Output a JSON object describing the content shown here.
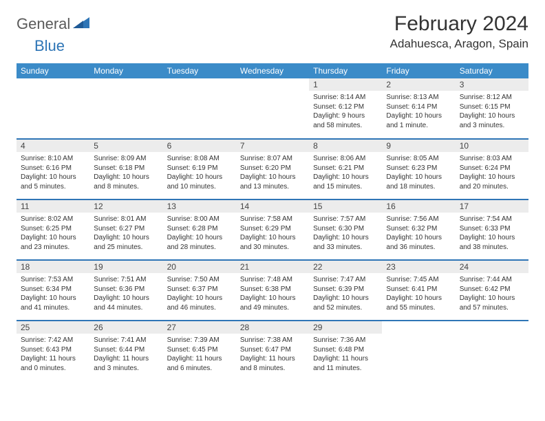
{
  "brand": {
    "part1": "General",
    "part2": "Blue"
  },
  "title": "February 2024",
  "location": "Adahuesca, Aragon, Spain",
  "header_bg": "#3b8bc8",
  "rule_color": "#2e75b6",
  "daynum_bg": "#ececec",
  "text_color": "#333333",
  "font_size_title": 30,
  "font_size_location": 17,
  "font_size_header": 12,
  "font_size_daynum": 12,
  "font_size_body": 10,
  "weekdays": [
    "Sunday",
    "Monday",
    "Tuesday",
    "Wednesday",
    "Thursday",
    "Friday",
    "Saturday"
  ],
  "weeks": [
    [
      null,
      null,
      null,
      null,
      {
        "n": "1",
        "sr": "8:14 AM",
        "ss": "6:12 PM",
        "dl": "9 hours and 58 minutes."
      },
      {
        "n": "2",
        "sr": "8:13 AM",
        "ss": "6:14 PM",
        "dl": "10 hours and 1 minute."
      },
      {
        "n": "3",
        "sr": "8:12 AM",
        "ss": "6:15 PM",
        "dl": "10 hours and 3 minutes."
      }
    ],
    [
      {
        "n": "4",
        "sr": "8:10 AM",
        "ss": "6:16 PM",
        "dl": "10 hours and 5 minutes."
      },
      {
        "n": "5",
        "sr": "8:09 AM",
        "ss": "6:18 PM",
        "dl": "10 hours and 8 minutes."
      },
      {
        "n": "6",
        "sr": "8:08 AM",
        "ss": "6:19 PM",
        "dl": "10 hours and 10 minutes."
      },
      {
        "n": "7",
        "sr": "8:07 AM",
        "ss": "6:20 PM",
        "dl": "10 hours and 13 minutes."
      },
      {
        "n": "8",
        "sr": "8:06 AM",
        "ss": "6:21 PM",
        "dl": "10 hours and 15 minutes."
      },
      {
        "n": "9",
        "sr": "8:05 AM",
        "ss": "6:23 PM",
        "dl": "10 hours and 18 minutes."
      },
      {
        "n": "10",
        "sr": "8:03 AM",
        "ss": "6:24 PM",
        "dl": "10 hours and 20 minutes."
      }
    ],
    [
      {
        "n": "11",
        "sr": "8:02 AM",
        "ss": "6:25 PM",
        "dl": "10 hours and 23 minutes."
      },
      {
        "n": "12",
        "sr": "8:01 AM",
        "ss": "6:27 PM",
        "dl": "10 hours and 25 minutes."
      },
      {
        "n": "13",
        "sr": "8:00 AM",
        "ss": "6:28 PM",
        "dl": "10 hours and 28 minutes."
      },
      {
        "n": "14",
        "sr": "7:58 AM",
        "ss": "6:29 PM",
        "dl": "10 hours and 30 minutes."
      },
      {
        "n": "15",
        "sr": "7:57 AM",
        "ss": "6:30 PM",
        "dl": "10 hours and 33 minutes."
      },
      {
        "n": "16",
        "sr": "7:56 AM",
        "ss": "6:32 PM",
        "dl": "10 hours and 36 minutes."
      },
      {
        "n": "17",
        "sr": "7:54 AM",
        "ss": "6:33 PM",
        "dl": "10 hours and 38 minutes."
      }
    ],
    [
      {
        "n": "18",
        "sr": "7:53 AM",
        "ss": "6:34 PM",
        "dl": "10 hours and 41 minutes."
      },
      {
        "n": "19",
        "sr": "7:51 AM",
        "ss": "6:36 PM",
        "dl": "10 hours and 44 minutes."
      },
      {
        "n": "20",
        "sr": "7:50 AM",
        "ss": "6:37 PM",
        "dl": "10 hours and 46 minutes."
      },
      {
        "n": "21",
        "sr": "7:48 AM",
        "ss": "6:38 PM",
        "dl": "10 hours and 49 minutes."
      },
      {
        "n": "22",
        "sr": "7:47 AM",
        "ss": "6:39 PM",
        "dl": "10 hours and 52 minutes."
      },
      {
        "n": "23",
        "sr": "7:45 AM",
        "ss": "6:41 PM",
        "dl": "10 hours and 55 minutes."
      },
      {
        "n": "24",
        "sr": "7:44 AM",
        "ss": "6:42 PM",
        "dl": "10 hours and 57 minutes."
      }
    ],
    [
      {
        "n": "25",
        "sr": "7:42 AM",
        "ss": "6:43 PM",
        "dl": "11 hours and 0 minutes."
      },
      {
        "n": "26",
        "sr": "7:41 AM",
        "ss": "6:44 PM",
        "dl": "11 hours and 3 minutes."
      },
      {
        "n": "27",
        "sr": "7:39 AM",
        "ss": "6:45 PM",
        "dl": "11 hours and 6 minutes."
      },
      {
        "n": "28",
        "sr": "7:38 AM",
        "ss": "6:47 PM",
        "dl": "11 hours and 8 minutes."
      },
      {
        "n": "29",
        "sr": "7:36 AM",
        "ss": "6:48 PM",
        "dl": "11 hours and 11 minutes."
      },
      null,
      null
    ]
  ],
  "labels": {
    "sunrise": "Sunrise:",
    "sunset": "Sunset:",
    "daylight": "Daylight:"
  }
}
